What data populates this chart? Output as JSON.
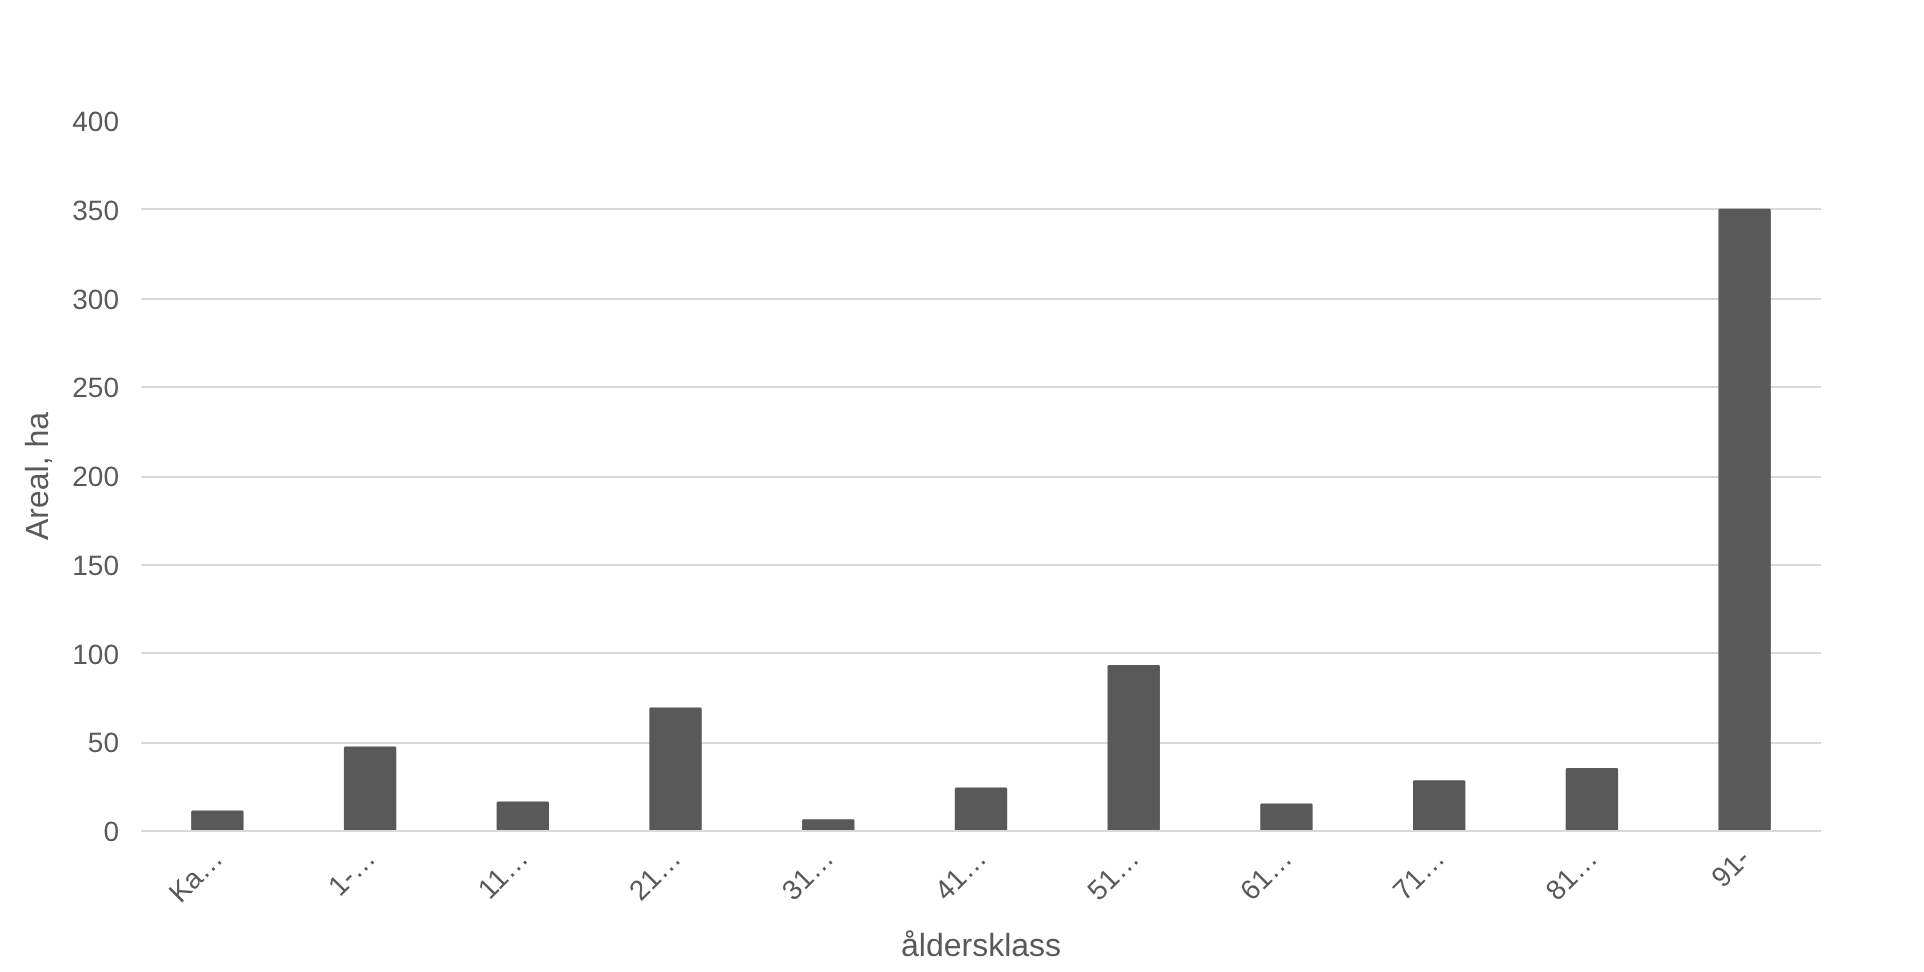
{
  "chart_data": {
    "type": "bar",
    "xlabel": "åldersklass",
    "ylabel": "Areal, ha",
    "categories": [
      "Ka…",
      "1-…",
      "11…",
      "21…",
      "31…",
      "41…",
      "51…",
      "61…",
      "71…",
      "81…",
      "91-"
    ],
    "values": [
      11,
      47,
      16,
      69,
      6,
      24,
      93,
      15,
      28,
      35,
      350
    ],
    "color": "#595959",
    "ylim": [
      0,
      400
    ],
    "yticks": [
      0,
      50,
      100,
      150,
      200,
      250,
      300,
      350,
      400
    ],
    "grid": "y"
  }
}
